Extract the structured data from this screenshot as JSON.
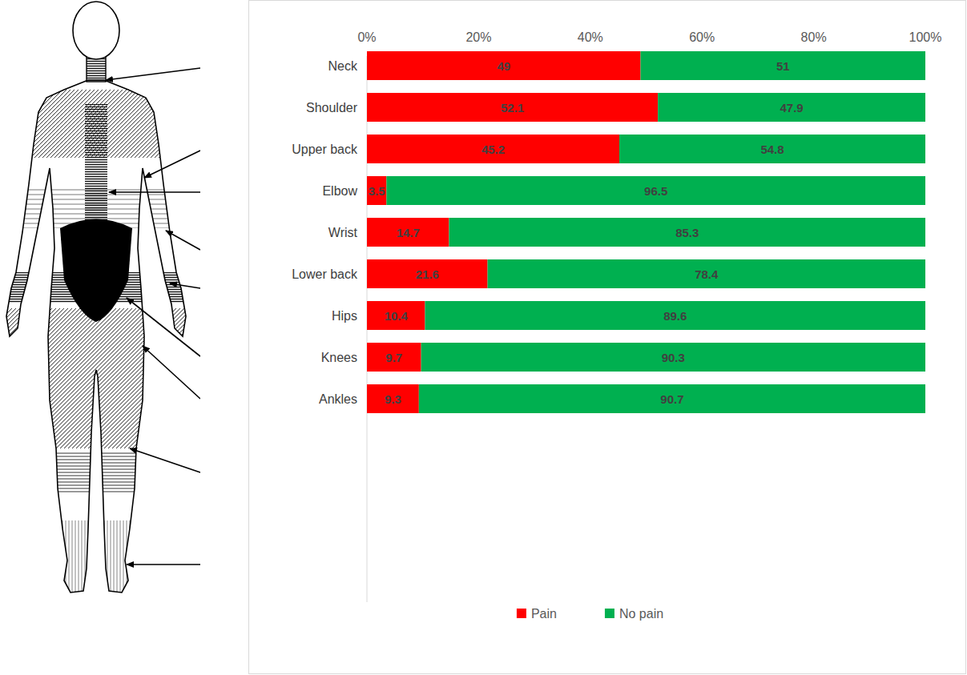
{
  "chart_data": {
    "type": "bar",
    "orientation": "horizontal",
    "stacked": true,
    "data_labels": true,
    "grid": false,
    "legend": "bottom",
    "categories": [
      "Neck",
      "Shoulder",
      "Upper back",
      "Elbow",
      "Wrist",
      "Lower back",
      "Hips",
      "Knees",
      "Ankles"
    ],
    "series": [
      {
        "name": "Pain",
        "color": "#ff0000",
        "values": [
          49,
          52.1,
          45.2,
          3.5,
          14.7,
          21.6,
          10.4,
          9.7,
          9.3
        ]
      },
      {
        "name": "No pain",
        "color": "#00b050",
        "values": [
          51,
          47.9,
          54.8,
          96.5,
          85.3,
          78.4,
          89.6,
          90.3,
          90.7
        ]
      }
    ],
    "xlim": [
      0,
      100
    ],
    "xticks": [
      {
        "value": 0,
        "label": "0%"
      },
      {
        "value": 20,
        "label": "20%"
      },
      {
        "value": 40,
        "label": "40%"
      },
      {
        "value": 60,
        "label": "60%"
      },
      {
        "value": 80,
        "label": "80%"
      },
      {
        "value": 100,
        "label": "100%"
      }
    ]
  }
}
